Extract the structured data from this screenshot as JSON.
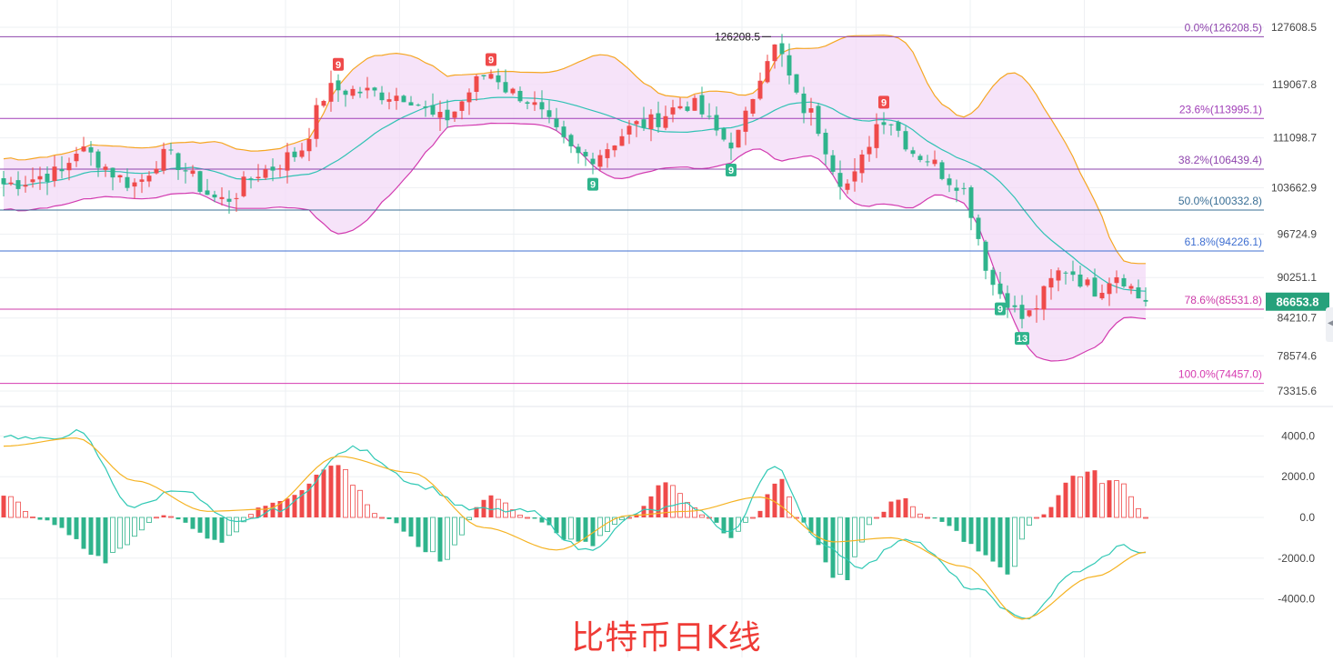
{
  "title": "比特币日K线",
  "colors": {
    "up": "#ef4a4a",
    "down": "#2fb48c",
    "band_fill": "#f3d9f7",
    "band_upper": "#f5a623",
    "band_lower": "#d23bb0",
    "band_mid": "#31c2b4",
    "dif": "#31c9b5",
    "dea": "#f5b323",
    "price_tag": "#26a17b",
    "grid": "#eef0f3"
  },
  "price_axis": {
    "ticks": [
      "127608.5",
      "119067.8",
      "111098.7",
      "103662.9",
      "96724.9",
      "90251.1",
      "84210.7",
      "78574.6",
      "73315.6"
    ],
    "current_price": "86653.8"
  },
  "macd_axis": {
    "ticks": [
      "4000.0",
      "2000.0",
      "0.0",
      "-2000.0",
      "-4000.0"
    ]
  },
  "fib_levels": [
    {
      "label": "0.0%(126208.5)",
      "price": 126208.5,
      "color": "#8e44ad"
    },
    {
      "label": "23.6%(113995.1)",
      "price": 113995.1,
      "color": "#a13fb8"
    },
    {
      "label": "38.2%(106439.4)",
      "price": 106439.4,
      "color": "#8e44ad"
    },
    {
      "label": "50.0%(100332.8)",
      "price": 100332.8,
      "color": "#3a6f96"
    },
    {
      "label": "61.8%(94226.1)",
      "price": 94226.1,
      "color": "#3f6fd1"
    },
    {
      "label": "78.6%(85531.8)",
      "price": 85531.8,
      "color": "#cc3ba8"
    },
    {
      "label": "100.0%(74457.0)",
      "price": 74457.0,
      "color": "#d63bb0"
    }
  ],
  "peak_annotation": "126208.5",
  "td_markers": [
    {
      "text": "9",
      "type": "sell",
      "candle": 46
    },
    {
      "text": "9",
      "type": "sell",
      "candle": 67
    },
    {
      "text": "9",
      "type": "sell",
      "candle": 121
    },
    {
      "text": "9",
      "type": "buy",
      "candle": 81
    },
    {
      "text": "9",
      "type": "buy",
      "candle": 100
    },
    {
      "text": "9",
      "type": "buy",
      "candle": 137
    },
    {
      "text": "13",
      "type": "buy",
      "candle": 140
    }
  ],
  "chart_data": {
    "type": "candlestick",
    "title": "比特币日K线",
    "candle_count": 158,
    "price_range": [
      73315.6,
      127608.5
    ],
    "bollinger_bands": true,
    "close_key_points": [
      {
        "candle": 0,
        "close": 104200
      },
      {
        "candle": 8,
        "close": 105900
      },
      {
        "candle": 10,
        "close": 109300
      },
      {
        "candle": 18,
        "close": 104300
      },
      {
        "candle": 22,
        "close": 108300
      },
      {
        "candle": 30,
        "close": 101800
      },
      {
        "candle": 36,
        "close": 106300
      },
      {
        "candle": 40,
        "close": 108600
      },
      {
        "candle": 45,
        "close": 118300
      },
      {
        "candle": 55,
        "close": 117500
      },
      {
        "candle": 60,
        "close": 113800
      },
      {
        "candle": 67,
        "close": 120800
      },
      {
        "candle": 70,
        "close": 117800
      },
      {
        "candle": 80,
        "close": 108200
      },
      {
        "candle": 88,
        "close": 113200
      },
      {
        "candle": 94,
        "close": 116200
      },
      {
        "candle": 100,
        "close": 110500
      },
      {
        "candle": 106,
        "close": 124500
      },
      {
        "candle": 110,
        "close": 115500
      },
      {
        "candle": 116,
        "close": 104200
      },
      {
        "candle": 121,
        "close": 114200
      },
      {
        "candle": 126,
        "close": 108500
      },
      {
        "candle": 131,
        "close": 104500
      },
      {
        "candle": 137,
        "close": 88000
      },
      {
        "candle": 140,
        "close": 84200
      },
      {
        "candle": 146,
        "close": 91500
      },
      {
        "candle": 150,
        "close": 88500
      },
      {
        "candle": 153,
        "close": 90800
      },
      {
        "candle": 157,
        "close": 86653.8
      }
    ],
    "macd": {
      "range": [
        -4600,
        4600
      ],
      "hist_key_points": [
        {
          "candle": 0,
          "value": 1100
        },
        {
          "candle": 5,
          "value": -100
        },
        {
          "candle": 14,
          "value": -2000
        },
        {
          "candle": 22,
          "value": 100
        },
        {
          "candle": 30,
          "value": -1100
        },
        {
          "candle": 36,
          "value": 600
        },
        {
          "candle": 46,
          "value": 2400
        },
        {
          "candle": 52,
          "value": 0
        },
        {
          "candle": 60,
          "value": -2000
        },
        {
          "candle": 67,
          "value": 1100
        },
        {
          "candle": 72,
          "value": 0
        },
        {
          "candle": 80,
          "value": -1400
        },
        {
          "candle": 86,
          "value": 0
        },
        {
          "candle": 91,
          "value": 1700
        },
        {
          "candle": 97,
          "value": 0
        },
        {
          "candle": 100,
          "value": -1000
        },
        {
          "candle": 103,
          "value": 0
        },
        {
          "candle": 107,
          "value": 2200
        },
        {
          "candle": 109,
          "value": 0
        },
        {
          "candle": 115,
          "value": -3000
        },
        {
          "candle": 120,
          "value": 0
        },
        {
          "candle": 123,
          "value": 1000
        },
        {
          "candle": 127,
          "value": 0
        },
        {
          "candle": 138,
          "value": -2500
        },
        {
          "candle": 142,
          "value": 0
        },
        {
          "candle": 148,
          "value": 2200
        },
        {
          "candle": 154,
          "value": 1600
        },
        {
          "candle": 157,
          "value": 0
        }
      ],
      "dif_key_points": [
        {
          "candle": 0,
          "value": 4000
        },
        {
          "candle": 6,
          "value": 3800
        },
        {
          "candle": 10,
          "value": 4200
        },
        {
          "candle": 18,
          "value": 500
        },
        {
          "candle": 24,
          "value": 1400
        },
        {
          "candle": 32,
          "value": -300
        },
        {
          "candle": 38,
          "value": 400
        },
        {
          "candle": 48,
          "value": 3400
        },
        {
          "candle": 58,
          "value": 1500
        },
        {
          "candle": 64,
          "value": 400
        },
        {
          "candle": 72,
          "value": 300
        },
        {
          "candle": 80,
          "value": -1600
        },
        {
          "candle": 88,
          "value": 300
        },
        {
          "candle": 94,
          "value": 600
        },
        {
          "candle": 100,
          "value": -700
        },
        {
          "candle": 106,
          "value": 2600
        },
        {
          "candle": 112,
          "value": -1200
        },
        {
          "candle": 118,
          "value": -2400
        },
        {
          "candle": 124,
          "value": -1000
        },
        {
          "candle": 134,
          "value": -3600
        },
        {
          "candle": 140,
          "value": -5000
        },
        {
          "candle": 148,
          "value": -2600
        },
        {
          "candle": 154,
          "value": -1400
        },
        {
          "candle": 157,
          "value": -1800
        }
      ],
      "dea_key_points": [
        {
          "candle": 0,
          "value": 3500
        },
        {
          "candle": 10,
          "value": 3900
        },
        {
          "candle": 18,
          "value": 1800
        },
        {
          "candle": 28,
          "value": 300
        },
        {
          "candle": 36,
          "value": 400
        },
        {
          "candle": 46,
          "value": 3000
        },
        {
          "candle": 56,
          "value": 2200
        },
        {
          "candle": 66,
          "value": -500
        },
        {
          "candle": 76,
          "value": -1600
        },
        {
          "candle": 86,
          "value": 100
        },
        {
          "candle": 94,
          "value": 300
        },
        {
          "candle": 104,
          "value": 1000
        },
        {
          "candle": 114,
          "value": -1200
        },
        {
          "candle": 122,
          "value": -1000
        },
        {
          "candle": 132,
          "value": -2400
        },
        {
          "candle": 140,
          "value": -5000
        },
        {
          "candle": 150,
          "value": -2900
        },
        {
          "candle": 157,
          "value": -1700
        }
      ]
    }
  }
}
